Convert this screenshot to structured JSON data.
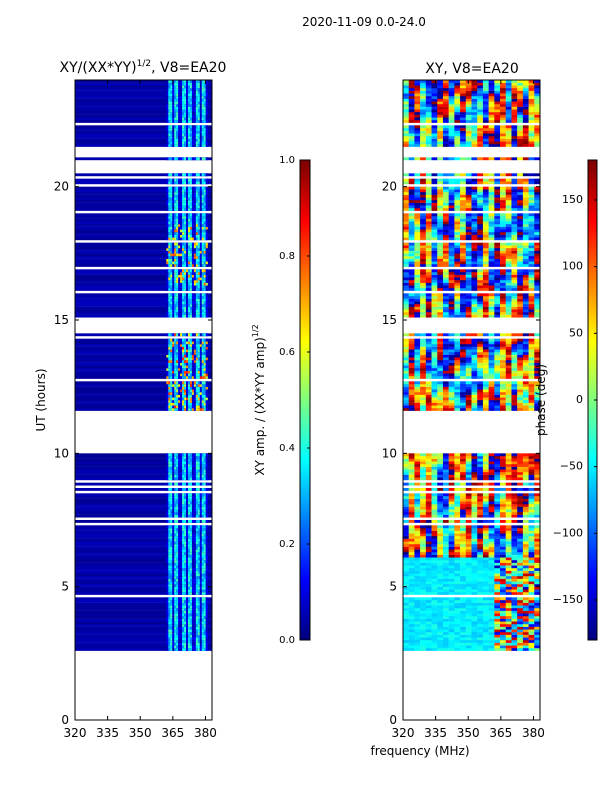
{
  "chart_data": {
    "suptitle": "2020-11-09 0.0-24.0",
    "xlabel_shared": "frequency (MHz)",
    "panels": [
      {
        "type": "heatmap",
        "title_prefix": "XY/(XX*YY)",
        "title_exp": "1/2",
        "title_suffix": ", V8=EA20",
        "ylabel": "UT (hours)",
        "xlim": [
          320,
          383
        ],
        "ylim": [
          0,
          24
        ],
        "x_ticks": [
          320,
          335,
          350,
          365,
          380
        ],
        "y_ticks": [
          0,
          5,
          10,
          15,
          20
        ],
        "colorbar": {
          "label_prefix": "XY amp. / (XX*YY amp)",
          "label_exp": "1/2",
          "range": [
            0.0,
            1.0
          ],
          "tick_values": [
            0.0,
            0.2,
            0.4,
            0.6,
            0.8,
            1.0
          ],
          "tick_labels": [
            "0.0",
            "0.2",
            "0.4",
            "0.6",
            "0.8",
            "1.0"
          ]
        },
        "data_segments_hours": [
          [
            2.6,
            6.1
          ],
          [
            6.1,
            10.0
          ],
          [
            11.5,
            14.5
          ],
          [
            15.0,
            20.5
          ],
          [
            21.0,
            24.0
          ]
        ],
        "bright_freq_band_mhz": [
          362,
          381
        ]
      },
      {
        "type": "heatmap",
        "title": "XY, V8=EA20",
        "xlim": [
          320,
          383
        ],
        "ylim": [
          0,
          24
        ],
        "x_ticks": [
          320,
          335,
          350,
          365,
          380
        ],
        "y_ticks": [
          0,
          5,
          10,
          15,
          20
        ],
        "colorbar": {
          "label": "phase (deg)",
          "range": [
            -180,
            180
          ],
          "tick_values": [
            -150,
            -100,
            -50,
            0,
            50,
            100,
            150
          ],
          "tick_labels": [
            "−150",
            "−100",
            "−50",
            "0",
            "50",
            "100",
            "150"
          ]
        },
        "data_segments_hours": [
          [
            2.6,
            6.1
          ],
          [
            6.1,
            10.0
          ],
          [
            11.5,
            14.5
          ],
          [
            15.0,
            20.5
          ],
          [
            21.0,
            24.0
          ]
        ]
      }
    ]
  },
  "colors": {
    "colormap": "jet",
    "low_value_fill": "#00008f",
    "axis": "#000000"
  }
}
